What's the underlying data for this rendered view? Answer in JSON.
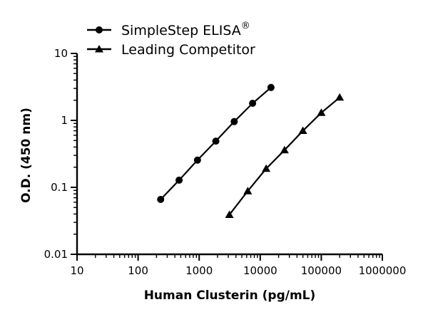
{
  "chart_data": {
    "type": "line",
    "xlabel": "Human Clusterin (pg/mL)",
    "ylabel": "O.D. (450 nm)",
    "xscale": "log",
    "yscale": "log",
    "xlim": [
      10,
      1000000
    ],
    "ylim": [
      0.01,
      10
    ],
    "x_ticks": [
      "10",
      "100",
      "1000",
      "10000",
      "100000",
      "1000000"
    ],
    "y_ticks": [
      "0.01",
      "0.1",
      "1",
      "10"
    ],
    "legend_position": "top-left",
    "series": [
      {
        "name": "SimpleStep ELISA",
        "name_superscript": "®",
        "marker": "circle",
        "color": "#000000",
        "x": [
          234,
          469,
          938,
          1875,
          3750,
          7500,
          15000
        ],
        "y": [
          0.066,
          0.128,
          0.255,
          0.49,
          0.96,
          1.8,
          3.1
        ]
      },
      {
        "name": "Leading Competitor",
        "marker": "triangle",
        "color": "#000000",
        "x": [
          3125,
          6250,
          12500,
          25000,
          50000,
          100000,
          200000
        ],
        "y": [
          0.039,
          0.088,
          0.19,
          0.36,
          0.7,
          1.3,
          2.2
        ]
      }
    ]
  }
}
